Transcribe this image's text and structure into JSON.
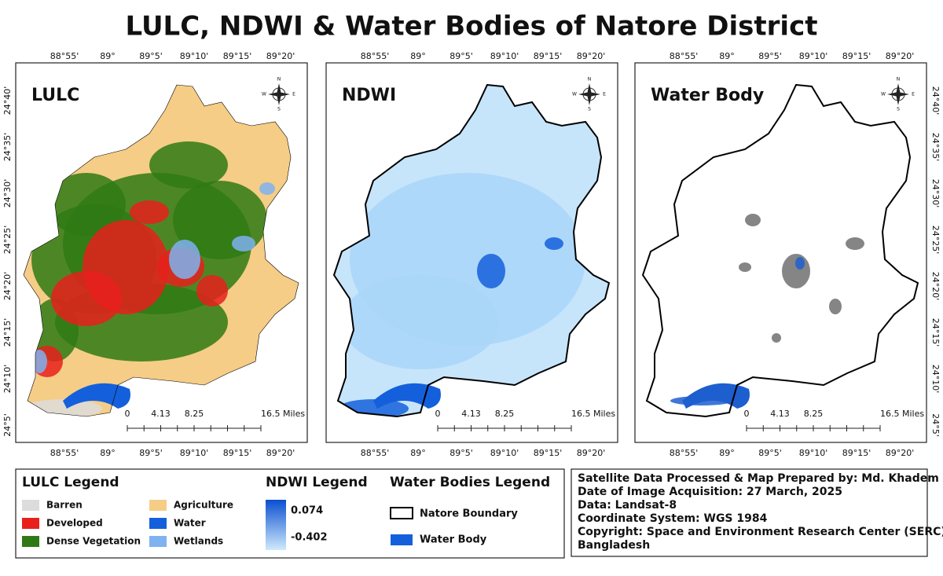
{
  "title": "LULC, NDWI & Water Bodies of Natore District",
  "graticule": {
    "longitudes": [
      "88°55'",
      "89°",
      "89°5'",
      "89°10'",
      "89°15'",
      "89°20'"
    ],
    "latitudes": [
      "24°40'",
      "24°35'",
      "24°30'",
      "24°25'",
      "24°20'",
      "24°15'",
      "24°10'",
      "24°5'"
    ]
  },
  "panels": [
    {
      "label": "LULC"
    },
    {
      "label": "NDWI"
    },
    {
      "label": "Water Body"
    }
  ],
  "compass": [
    "N",
    "E",
    "S",
    "W"
  ],
  "scale_bar": [
    "0",
    "4.13",
    "8.25",
    "16.5 Miles"
  ],
  "lulc_legend": {
    "title": "LULC Legend",
    "items": [
      {
        "label": "Barren",
        "color": "#dcdcdc"
      },
      {
        "label": "Developed",
        "color": "#e8201c"
      },
      {
        "label": "Dense Vegetation",
        "color": "#2f7a14"
      },
      {
        "label": "Agriculture",
        "color": "#f6cd86"
      },
      {
        "label": "Water",
        "color": "#1460dc"
      },
      {
        "label": "Wetlands",
        "color": "#7fb2f0"
      }
    ]
  },
  "ndwi_legend": {
    "title": "NDWI Legend",
    "max": "0.074",
    "min": "-0.402"
  },
  "water_legend": {
    "title": "Water Bodies Legend",
    "items": [
      "Natore Boundary",
      "Water Body"
    ]
  },
  "info": [
    "Satellite Data Processed & Map Prepared by: Md. Khadem Ali",
    "Date of Image Acquisition: 27 March, 2025",
    "Data: Landsat-8",
    "Coordinate System: WGS 1984",
    "Copyright: Space and Environment Research Center (SERC),",
    "Bangladesh"
  ]
}
